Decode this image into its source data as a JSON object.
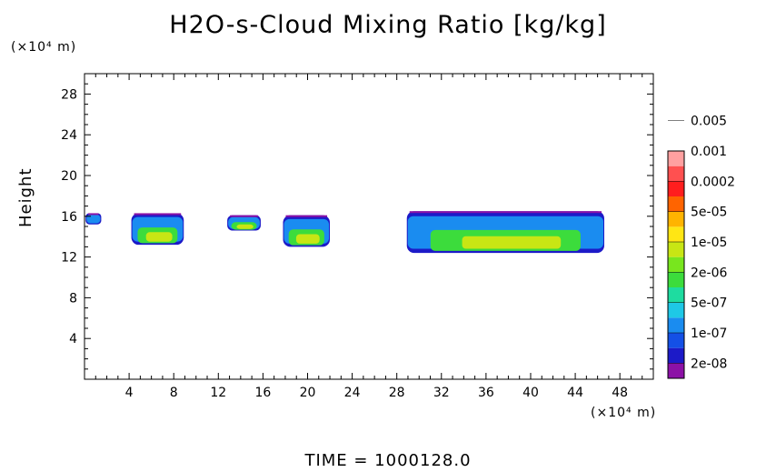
{
  "chart_data": {
    "type": "heatmap",
    "title": "H2O-s-Cloud Mixing Ratio [kg/kg]",
    "xlabel": "",
    "ylabel": "Height",
    "x_unit": "(×10⁴ m)",
    "y_unit": "(×10⁴ m)",
    "xlim": [
      0,
      51
    ],
    "ylim": [
      0,
      30
    ],
    "x_ticks": [
      4,
      8,
      12,
      16,
      20,
      24,
      28,
      32,
      36,
      40,
      44,
      48
    ],
    "y_ticks": [
      4,
      8,
      12,
      16,
      20,
      24,
      28
    ],
    "colorbar": {
      "levels": [
        "2e-08",
        "1e-07",
        "5e-07",
        "2e-06",
        "1e-05",
        "5e-05",
        "0.0002",
        "0.001",
        "0.005"
      ],
      "colors": [
        "#8c11a6",
        "#1c1ac8",
        "#1450e6",
        "#1a8cf0",
        "#1ec8e6",
        "#1edca0",
        "#3cdc3c",
        "#78e61e",
        "#c8e614",
        "#ffe614",
        "#ffb400",
        "#ff6400",
        "#ff1e1e",
        "#ff5050",
        "#ffa0a0"
      ]
    },
    "cloud_regions": [
      {
        "x_range": [
          0.1,
          1.5
        ],
        "y_range": [
          15.2,
          16.3
        ]
      },
      {
        "x_range": [
          4.2,
          8.9
        ],
        "y_range": [
          13.2,
          16.3
        ]
      },
      {
        "x_range": [
          12.8,
          15.8
        ],
        "y_range": [
          14.6,
          16.1
        ]
      },
      {
        "x_range": [
          17.8,
          22.0
        ],
        "y_range": [
          13.0,
          16.1
        ]
      },
      {
        "x_range": [
          28.9,
          46.6
        ],
        "y_range": [
          12.4,
          16.5
        ]
      }
    ]
  },
  "footer": {
    "time_label": "TIME = 1000128.0"
  }
}
